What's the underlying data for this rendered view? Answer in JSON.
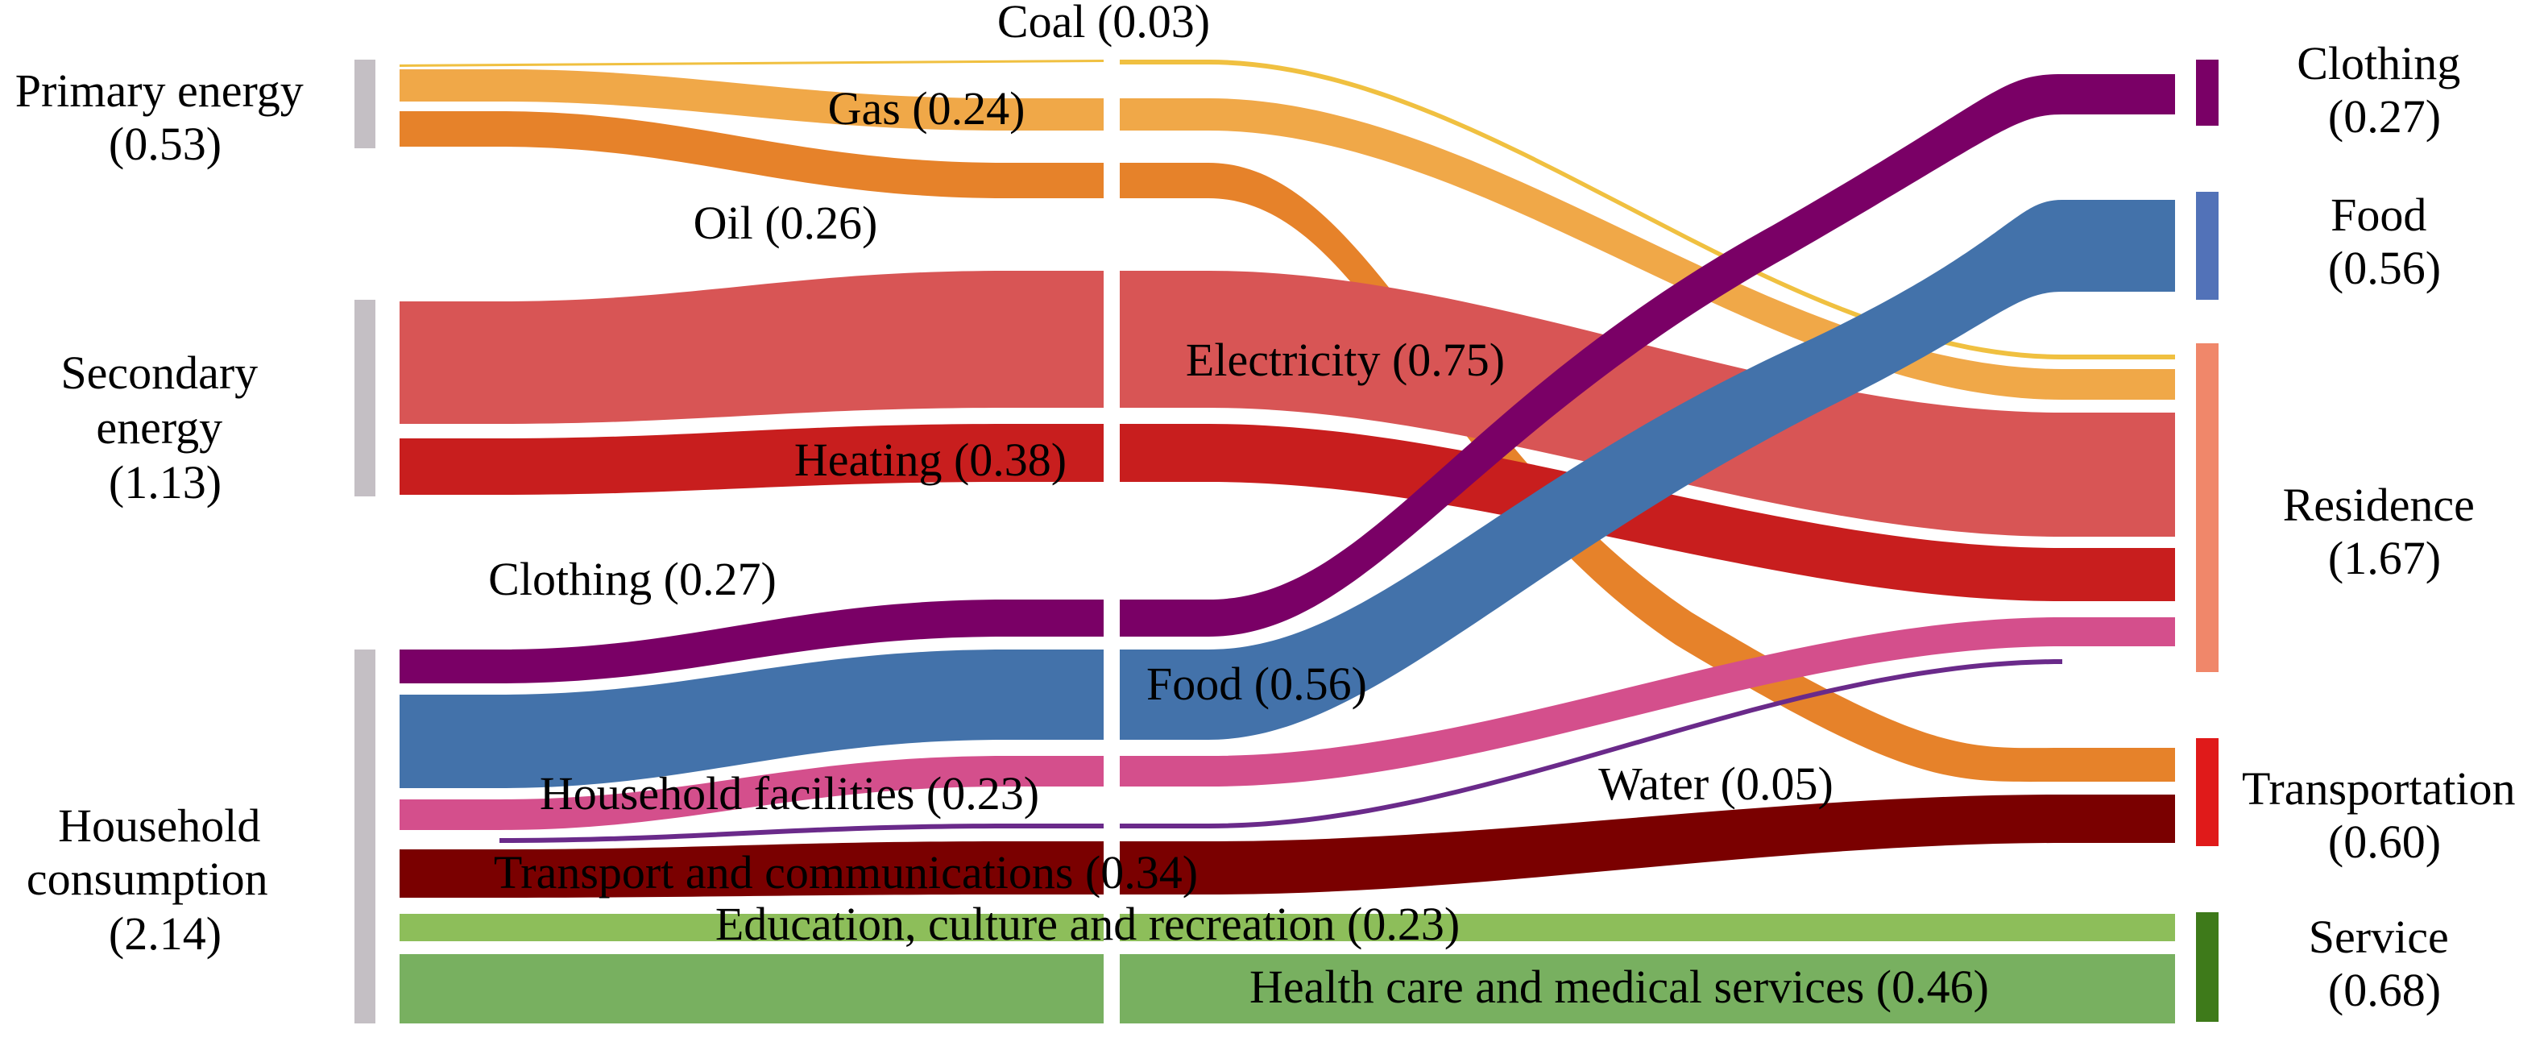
{
  "diagram": {
    "type": "sankey",
    "colors": {
      "node_bar_left": "#c4bfc4",
      "coal": "#f0c040",
      "gas": "#f0a848",
      "oil": "#e6822a",
      "electricity": "#d85555",
      "heating": "#c81e1e",
      "clothing": "#7a0066",
      "food": "#4372aa",
      "household_facilities": "#d44f8c",
      "water": "#6a2a8a",
      "transport_communications": "#7a0000",
      "education": "#8dbe5a",
      "health": "#78b060",
      "node_clothing": "#7a0066",
      "node_food": "#5272b8",
      "node_residence": "#f0876a",
      "node_transportation": "#e01a1a",
      "node_service": "#3e7a1a"
    },
    "left_nodes": [
      {
        "key": "primary",
        "line1": "Primary energy",
        "line2": "(0.53)"
      },
      {
        "key": "secondary",
        "line1": "Secondary",
        "line2": "energy",
        "line3": "(1.13)"
      },
      {
        "key": "household",
        "line1": "Household",
        "line2": "consumption",
        "line3": "(2.14)"
      }
    ],
    "right_nodes": [
      {
        "key": "clothing",
        "line1": "Clothing",
        "line2": "(0.27)"
      },
      {
        "key": "food",
        "line1": "Food",
        "line2": "(0.56)"
      },
      {
        "key": "residence",
        "line1": "Residence",
        "line2": "(1.67)"
      },
      {
        "key": "transportation",
        "line1": "Transportation",
        "line2": "(0.60)"
      },
      {
        "key": "service",
        "line1": "Service",
        "line2": "(0.68)"
      }
    ],
    "flows": [
      {
        "key": "coal",
        "label": "Coal (0.03)",
        "value": 0.03,
        "source": "Primary energy",
        "target": "Residence"
      },
      {
        "key": "gas",
        "label": "Gas (0.24)",
        "value": 0.24,
        "source": "Primary energy",
        "target": "Residence"
      },
      {
        "key": "oil",
        "label": "Oil (0.26)",
        "value": 0.26,
        "source": "Primary energy",
        "target": "Transportation"
      },
      {
        "key": "electricity",
        "label": "Electricity (0.75)",
        "value": 0.75,
        "source": "Secondary energy",
        "target": "Residence"
      },
      {
        "key": "heating",
        "label": "Heating (0.38)",
        "value": 0.38,
        "source": "Secondary energy",
        "target": "Residence"
      },
      {
        "key": "clothing",
        "label": "Clothing (0.27)",
        "value": 0.27,
        "source": "Household consumption",
        "target": "Clothing"
      },
      {
        "key": "food",
        "label": "Food (0.56)",
        "value": 0.56,
        "source": "Household consumption",
        "target": "Food"
      },
      {
        "key": "household_facilities",
        "label": "Household facilities (0.23)",
        "value": 0.23,
        "source": "Household consumption",
        "target": "Residence"
      },
      {
        "key": "water",
        "label": "Water (0.05)",
        "value": 0.05,
        "source": "Household consumption",
        "target": "Residence"
      },
      {
        "key": "transport_communications",
        "label": "Transport and communications (0.34)",
        "value": 0.34,
        "source": "Household consumption",
        "target": "Transportation"
      },
      {
        "key": "education",
        "label": "Education, culture and recreation (0.23)",
        "value": 0.23,
        "source": "Household consumption",
        "target": "Service"
      },
      {
        "key": "health",
        "label": "Health care and medical services (0.46)",
        "value": 0.46,
        "source": "Household consumption",
        "target": "Service"
      }
    ]
  }
}
